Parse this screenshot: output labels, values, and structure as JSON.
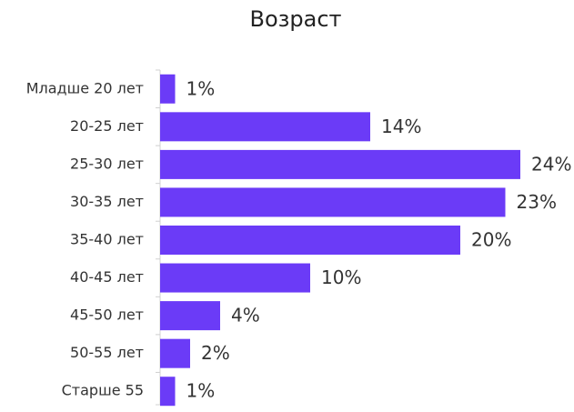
{
  "chart_data": {
    "type": "hbar",
    "title": "Возраст",
    "categories": [
      "Младше 20 лет",
      "20-25 лет",
      "25-30 лет",
      "30-35 лет",
      "35-40 лет",
      "40-45 лет",
      "45-50 лет",
      "50-55 лет",
      "Старше 55"
    ],
    "values": [
      1,
      14,
      24,
      23,
      20,
      10,
      4,
      2,
      1
    ],
    "value_labels": [
      "1%",
      "14%",
      "24%",
      "23%",
      "20%",
      "10%",
      "4%",
      "2%",
      "1%"
    ],
    "color": "#6b3bf7"
  }
}
